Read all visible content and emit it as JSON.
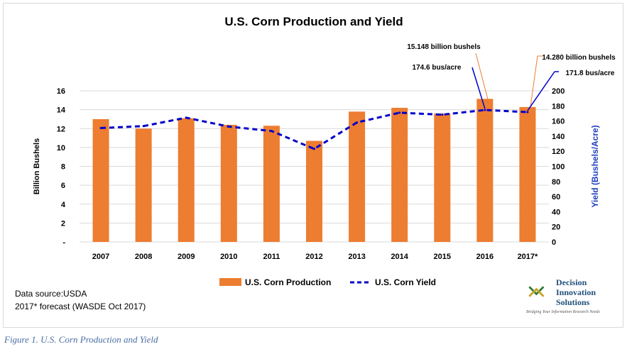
{
  "chart_data": {
    "type": "bar",
    "title": "U.S. Corn Production and Yield",
    "categories": [
      "2007",
      "2008",
      "2009",
      "2010",
      "2011",
      "2012",
      "2013",
      "2014",
      "2015",
      "2016",
      "2017*"
    ],
    "series": [
      {
        "name": "U.S. Corn Production",
        "type": "bar",
        "axis": "left",
        "color": "#ed7d31",
        "values": [
          13.0,
          12.0,
          13.1,
          12.4,
          12.3,
          10.7,
          13.8,
          14.2,
          13.6,
          15.148,
          14.28
        ]
      },
      {
        "name": "U.S. Corn Yield",
        "type": "line",
        "axis": "right",
        "color": "#0000cc",
        "style": "dashed",
        "values": [
          150.7,
          153.3,
          164.4,
          152.6,
          146.8,
          123.1,
          158.1,
          171.0,
          168.4,
          174.6,
          171.8
        ]
      }
    ],
    "ylabel": "Billion Bushels",
    "y2label": "Yield (Bushels/Acre)",
    "ylim": [
      0,
      16
    ],
    "y2lim": [
      0,
      200
    ],
    "yticks": [
      "-",
      "2",
      "4",
      "6",
      "8",
      "10",
      "12",
      "14",
      "16"
    ],
    "y2ticks": [
      "0",
      "20",
      "40",
      "60",
      "80",
      "100",
      "120",
      "140",
      "160",
      "180",
      "200"
    ],
    "annotations": [
      {
        "text": "15.148 billion bushels",
        "category": "2016",
        "series": "U.S. Corn Production"
      },
      {
        "text": "174.6 bus/acre",
        "category": "2016",
        "series": "U.S. Corn Yield"
      },
      {
        "text": "14.280 billion bushels",
        "category": "2017*",
        "series": "U.S. Corn Production"
      },
      {
        "text": "171.8 bus/acre",
        "category": "2017*",
        "series": "U.S. Corn Yield"
      }
    ],
    "legend": "bottom",
    "grid": true
  },
  "source": {
    "line1": "Data source:USDA",
    "line2": "2017* forecast (WASDE Oct 2017)"
  },
  "logo": {
    "line1": "Decision",
    "line2": "Innovation",
    "line3": "Solutions",
    "tagline": "Bridging Your Information Research Needs"
  },
  "caption": "Figure 1. U.S. Corn Production and Yield"
}
